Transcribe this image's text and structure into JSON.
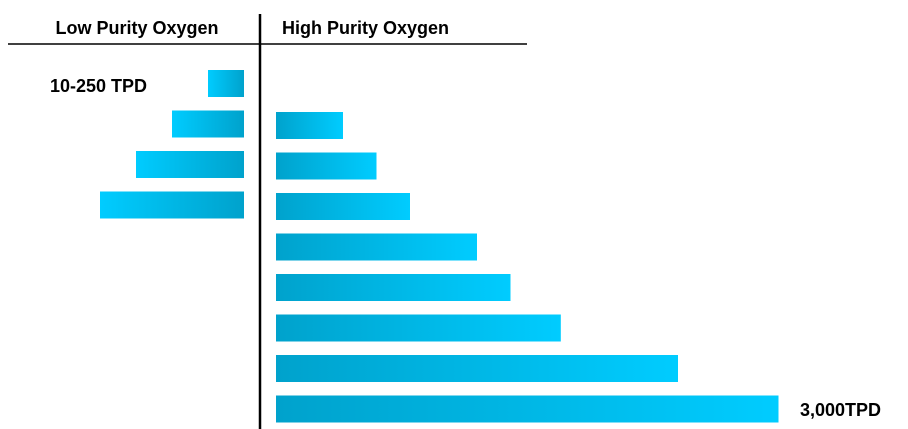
{
  "chart_data": {
    "type": "bar",
    "orientation": "horizontal",
    "panels": [
      {
        "title": "Low Purity Oxygen",
        "direction": "left",
        "values": [
          1,
          2,
          3,
          4
        ],
        "annotation": "10-250 TPD"
      },
      {
        "title": "High Purity Oxygen",
        "direction": "right",
        "values": [
          2,
          3,
          4,
          6,
          7,
          8.5,
          12,
          15
        ],
        "annotation": "3,000TPD"
      }
    ],
    "grid": false,
    "colors": {
      "bar_light": "#00ccff",
      "bar_dark": "#00a2cc",
      "divider": "#000000",
      "text": "#000000"
    }
  }
}
